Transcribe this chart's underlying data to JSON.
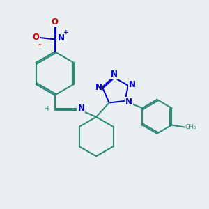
{
  "bg_color": "#eaeff1",
  "bond_color": "#2d8a7a",
  "nitrogen_color": "#0000cc",
  "oxygen_color": "#cc0000",
  "lw": 1.5,
  "fs": 8.5,
  "xlim": [
    0,
    10
  ],
  "ylim": [
    0,
    10
  ]
}
